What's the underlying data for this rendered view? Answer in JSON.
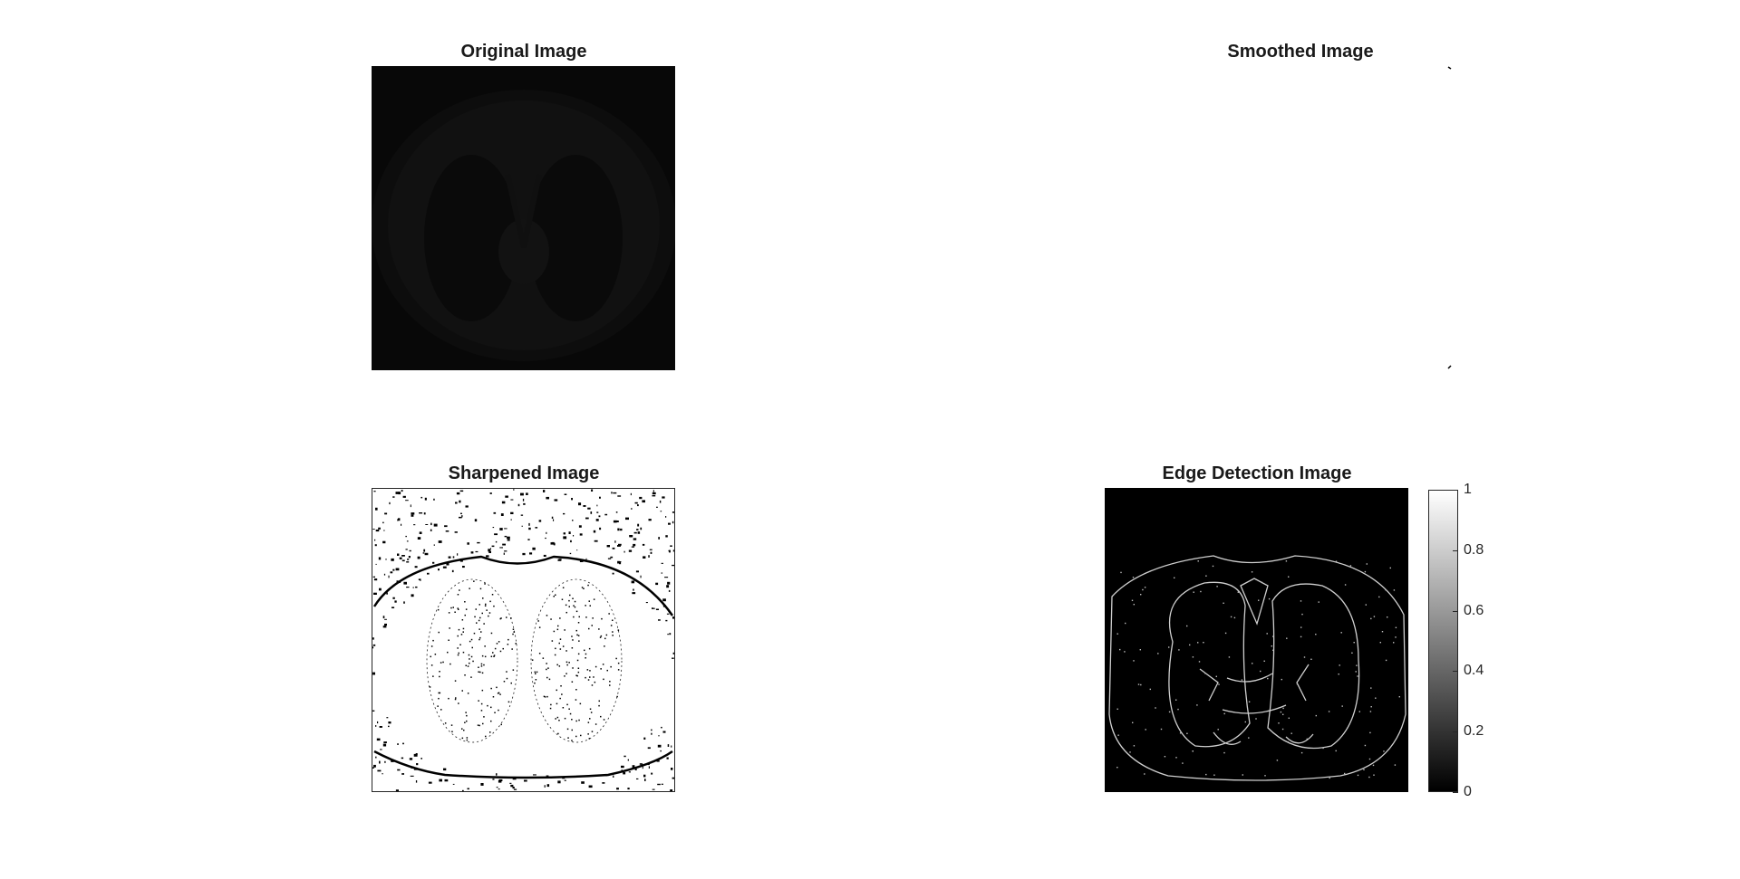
{
  "figure": {
    "panels": {
      "original": {
        "title": "Original Image"
      },
      "smoothed": {
        "title": "Smoothed Image"
      },
      "sharpened": {
        "title": "Sharpened Image"
      },
      "edge": {
        "title": "Edge Detection Image"
      }
    },
    "colorbar": {
      "colormap": "gray",
      "range": [
        0,
        1
      ],
      "ticks": [
        "0",
        "0.2",
        "0.4",
        "0.6",
        "0.8",
        "1"
      ]
    }
  }
}
